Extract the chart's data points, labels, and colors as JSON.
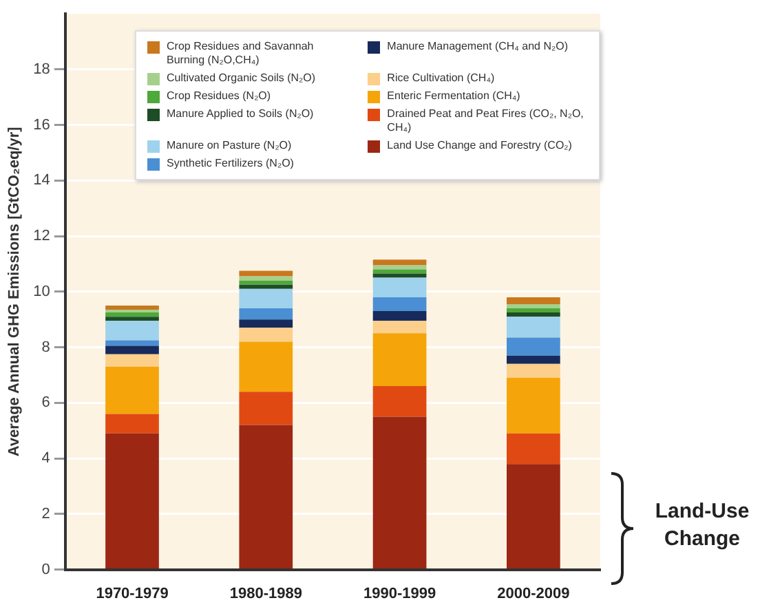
{
  "chart_data": {
    "type": "bar",
    "stacked": true,
    "ylabel": "Average Annual GHG Emissions [GtCO₂eq/yr]",
    "categories": [
      "1970-1979",
      "1980-1989",
      "1990-1999",
      "2000-2009"
    ],
    "ylim": [
      0,
      20
    ],
    "yticks": [
      0,
      2,
      4,
      6,
      8,
      10,
      12,
      14,
      16,
      18
    ],
    "grid": "y",
    "legend": "top",
    "annotations": [
      "Land-Use Change"
    ],
    "series": [
      {
        "name": "Land Use Change and Forestry (CO₂)",
        "color": "#9c2713",
        "values": [
          4.9,
          5.2,
          5.5,
          3.8
        ]
      },
      {
        "name": "Drained Peat and Peat Fires (CO₂, N₂O, CH₄)",
        "color": "#e04a12",
        "values": [
          0.7,
          1.2,
          1.1,
          1.1
        ]
      },
      {
        "name": "Enteric Fermentation (CH₄)",
        "color": "#f5a50a",
        "values": [
          1.7,
          1.8,
          1.9,
          2.0
        ]
      },
      {
        "name": "Rice Cultivation (CH₄)",
        "color": "#fccf8a",
        "values": [
          0.45,
          0.5,
          0.45,
          0.5
        ]
      },
      {
        "name": "Manure Management (CH₄ and N₂O)",
        "color": "#172a5c",
        "values": [
          0.3,
          0.3,
          0.35,
          0.3
        ]
      },
      {
        "name": "Synthetic Fertilizers (N₂O)",
        "color": "#4a8fd4",
        "values": [
          0.2,
          0.4,
          0.5,
          0.65
        ]
      },
      {
        "name": "Manure on Pasture (N₂O)",
        "color": "#9fd2ec",
        "values": [
          0.7,
          0.7,
          0.7,
          0.75
        ]
      },
      {
        "name": "Manure Applied to Soils (N₂O)",
        "color": "#1d4d26",
        "values": [
          0.15,
          0.15,
          0.15,
          0.15
        ]
      },
      {
        "name": "Crop Residues (N₂O)",
        "color": "#4fa83a",
        "values": [
          0.15,
          0.15,
          0.15,
          0.15
        ]
      },
      {
        "name": "Cultivated Organic Soils (N₂O)",
        "color": "#a5d08c",
        "values": [
          0.1,
          0.15,
          0.15,
          0.15
        ]
      },
      {
        "name": "Crop Residues and Savannah Burning (N₂O,CH₄)",
        "color": "#c8781e",
        "values": [
          0.15,
          0.2,
          0.2,
          0.25
        ]
      }
    ]
  }
}
